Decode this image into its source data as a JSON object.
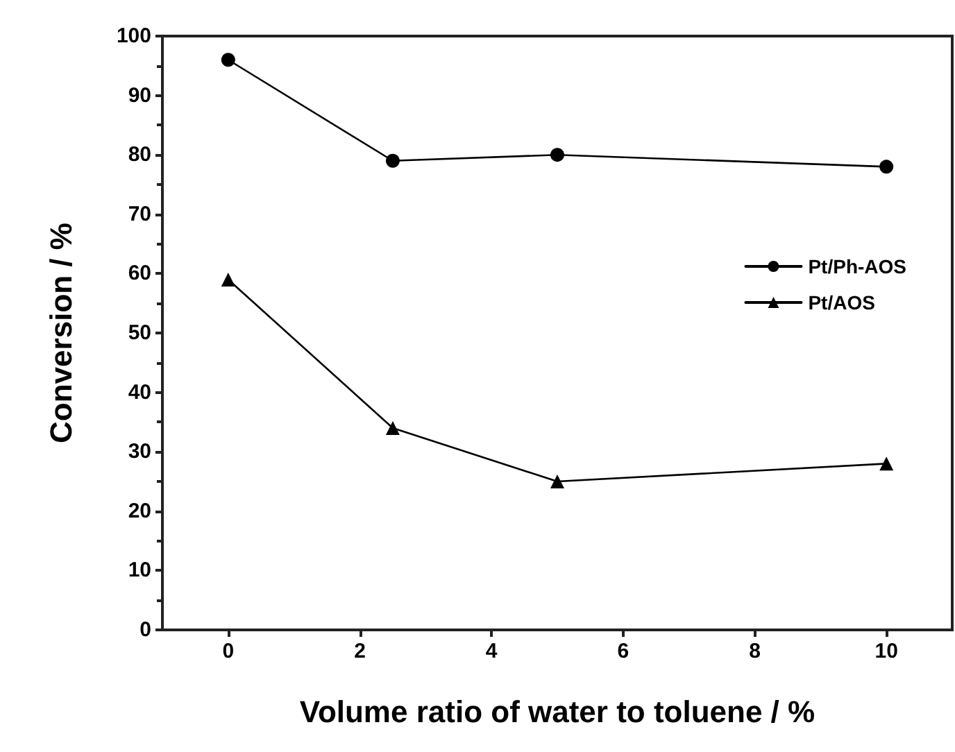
{
  "chart_data": {
    "type": "line",
    "xlabel": "Volume ratio of water to toluene / %",
    "ylabel": "Conversion / %",
    "x": [
      0,
      2.5,
      5,
      10
    ],
    "series": [
      {
        "name": "Pt/Ph-AOS",
        "color": "#000000",
        "marker": "circle",
        "values": [
          96,
          79,
          80,
          78
        ]
      },
      {
        "name": "Pt/AOS",
        "color": "#000000",
        "marker": "triangle",
        "values": [
          59,
          34,
          25,
          28
        ]
      }
    ],
    "xlim": [
      -1,
      11
    ],
    "xticks": [
      0,
      2,
      4,
      6,
      8,
      10
    ],
    "ylim": [
      0,
      100
    ],
    "yticks": [
      0,
      10,
      20,
      30,
      40,
      50,
      60,
      70,
      80,
      90,
      100
    ],
    "grid": false,
    "legend": "right",
    "line_style": "solid"
  }
}
